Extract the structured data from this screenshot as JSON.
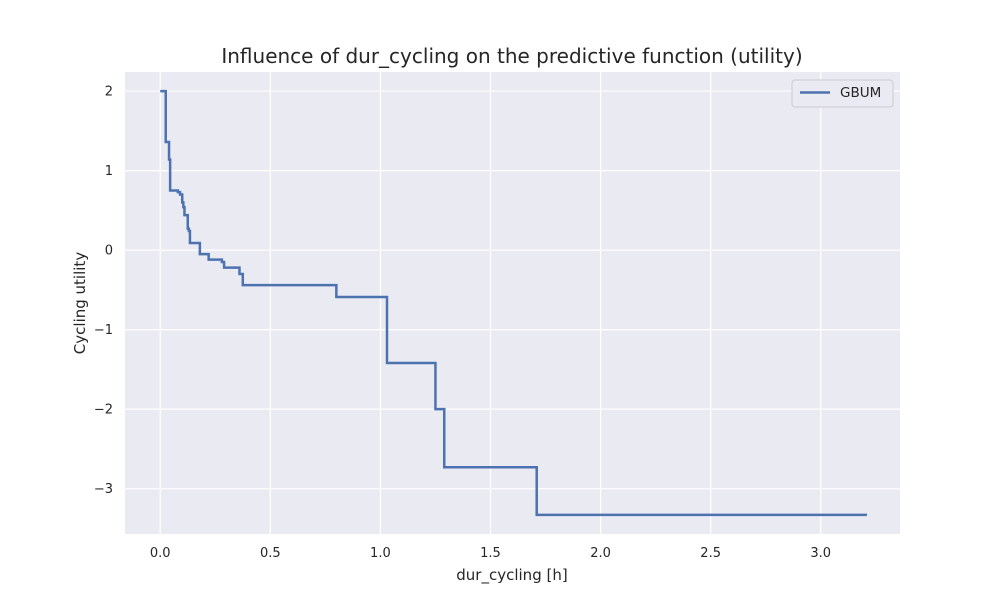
{
  "chart_data": {
    "type": "line",
    "title": "Influence of dur_cycling on the predictive function (utility)",
    "xlabel": "dur_cycling [h]",
    "ylabel": "Cycling utility",
    "xlim": [
      -0.16,
      3.36
    ],
    "ylim": [
      -3.57,
      2.24
    ],
    "xticks": [
      0.0,
      0.5,
      1.0,
      1.5,
      2.0,
      2.5,
      3.0
    ],
    "xtick_labels": [
      "0.0",
      "0.5",
      "1.0",
      "1.5",
      "2.0",
      "2.5",
      "3.0"
    ],
    "yticks": [
      2,
      1,
      0,
      -1,
      -2,
      -3
    ],
    "ytick_labels": [
      "2",
      "1",
      "0",
      "−1",
      "−2",
      "−3"
    ],
    "grid": true,
    "legend_position": "top-right",
    "colors": {
      "background": "#eaeaf2",
      "grid": "#ffffff",
      "series": "#4c72b0"
    },
    "series": [
      {
        "name": "GBUM",
        "step": "post",
        "points": [
          [
            0.0,
            2.0
          ],
          [
            0.025,
            1.36
          ],
          [
            0.04,
            1.14
          ],
          [
            0.045,
            0.75
          ],
          [
            0.08,
            0.73
          ],
          [
            0.09,
            0.7
          ],
          [
            0.1,
            0.6
          ],
          [
            0.105,
            0.54
          ],
          [
            0.11,
            0.44
          ],
          [
            0.125,
            0.27
          ],
          [
            0.13,
            0.24
          ],
          [
            0.135,
            0.09
          ],
          [
            0.18,
            -0.05
          ],
          [
            0.22,
            -0.12
          ],
          [
            0.28,
            -0.15
          ],
          [
            0.29,
            -0.22
          ],
          [
            0.36,
            -0.3
          ],
          [
            0.375,
            -0.44
          ],
          [
            0.8,
            -0.59
          ],
          [
            1.03,
            -1.42
          ],
          [
            1.25,
            -2.0
          ],
          [
            1.29,
            -2.73
          ],
          [
            1.71,
            -3.33
          ],
          [
            3.21,
            -3.33
          ]
        ]
      }
    ]
  }
}
